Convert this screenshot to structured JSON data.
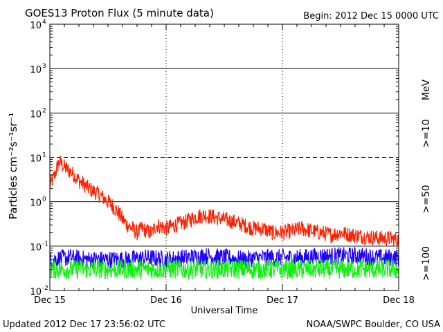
{
  "chart_data": {
    "type": "line",
    "title": "GOES13 Proton Flux (5 minute data)",
    "begin_label": "Begin: 2012 Dec 15 0000 UTC",
    "ylabel": "Particles cm⁻²s⁻¹sr⁻¹",
    "xlabel": "Universal Time",
    "y_scale": "log",
    "ylim": [
      0.01,
      10000
    ],
    "y_ticks": [
      {
        "base": "10",
        "exp": "-2",
        "value": 0.01
      },
      {
        "base": "10",
        "exp": "-1",
        "value": 0.1
      },
      {
        "base": "10",
        "exp": "0",
        "value": 1
      },
      {
        "base": "10",
        "exp": "1",
        "value": 10
      },
      {
        "base": "10",
        "exp": "2",
        "value": 100
      },
      {
        "base": "10",
        "exp": "3",
        "value": 1000
      },
      {
        "base": "10",
        "exp": "4",
        "value": 10000
      }
    ],
    "x_ticks": [
      "Dec 15",
      "Dec 16",
      "Dec 17",
      "Dec 18"
    ],
    "xlim_hours": [
      0,
      72
    ],
    "reference_lines": [
      {
        "value": 10,
        "style": "dashed"
      },
      {
        "value": 0.1,
        "style": "solid"
      }
    ],
    "legend_unit": "MeV",
    "series": [
      {
        "name": ">=10",
        "color": "#ff2000",
        "x_hours": [
          0,
          0.5,
          1,
          1.5,
          2,
          3,
          4,
          5,
          6,
          8,
          10,
          12,
          13,
          14,
          15,
          16,
          17,
          18,
          19,
          20,
          21,
          22,
          24,
          26,
          28,
          30,
          32,
          34,
          36,
          38,
          40,
          42,
          44,
          46,
          48,
          50,
          52,
          54,
          56,
          58,
          60,
          62,
          64,
          66,
          68,
          70,
          72
        ],
        "values": [
          2.5,
          3,
          4,
          6,
          8,
          6,
          5,
          4,
          3,
          2,
          1.5,
          1,
          0.8,
          0.6,
          0.4,
          0.3,
          0.25,
          0.2,
          0.25,
          0.22,
          0.2,
          0.3,
          0.25,
          0.3,
          0.35,
          0.45,
          0.5,
          0.45,
          0.4,
          0.35,
          0.3,
          0.25,
          0.25,
          0.2,
          0.2,
          0.22,
          0.25,
          0.22,
          0.2,
          0.18,
          0.2,
          0.18,
          0.17,
          0.16,
          0.15,
          0.15,
          0.14
        ]
      },
      {
        "name": ">=50",
        "color": "#1e00ff",
        "x_hours": [
          0,
          4,
          8,
          12,
          16,
          20,
          24,
          28,
          32,
          36,
          40,
          44,
          48,
          52,
          56,
          60,
          64,
          68,
          72
        ],
        "values": [
          0.05,
          0.055,
          0.05,
          0.05,
          0.05,
          0.055,
          0.05,
          0.055,
          0.06,
          0.055,
          0.05,
          0.055,
          0.055,
          0.055,
          0.06,
          0.06,
          0.06,
          0.055,
          0.055
        ]
      },
      {
        "name": ">=100",
        "color": "#10f010",
        "x_hours": [
          0,
          6,
          12,
          18,
          24,
          30,
          36,
          42,
          48,
          54,
          60,
          66,
          72
        ],
        "values": [
          0.03,
          0.03,
          0.03,
          0.03,
          0.03,
          0.03,
          0.03,
          0.03,
          0.03,
          0.03,
          0.03,
          0.03,
          0.03
        ]
      }
    ]
  },
  "footer": {
    "updated": "Updated 2012 Dec 17 23:56:02 UTC",
    "source": "NOAA/SWPC Boulder, CO USA"
  }
}
